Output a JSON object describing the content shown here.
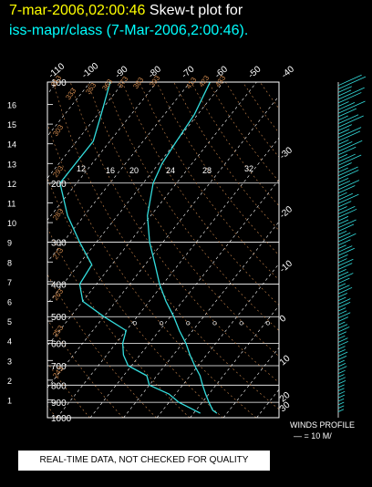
{
  "header": {
    "timestamp": "7-mar-2006,02:00:46",
    "title_text": "Skew-t plot for",
    "subtitle": "iss-mapr/class (7-Mar-2006,2:00:46)."
  },
  "wind_profile": {
    "label": "WINDS PROFILE",
    "legend": "— = 10 M/"
  },
  "notice": "REAL-TIME DATA, NOT CHECKED FOR QUALITY",
  "colors": {
    "trace": "#33dddd",
    "grid": "#ffffff",
    "dry_adiabat": "#c8844a",
    "accent_title": "#ffff00"
  },
  "chart_data": {
    "type": "line",
    "grid": true,
    "y_pressure_ticks": [
      "100",
      "200",
      "300",
      "400",
      "500",
      "600",
      "700",
      "800",
      "900",
      "1000"
    ],
    "y_height_km_ticks": [
      "16",
      "15",
      "14",
      "13",
      "12",
      "11",
      "10",
      "9",
      "8",
      "7",
      "6",
      "5",
      "4",
      "3",
      "2",
      "1"
    ],
    "top_temperature_ticks": [
      "-110",
      "-100",
      "-90",
      "-80",
      "-70",
      "-60",
      "-50",
      "-40"
    ],
    "right_temperature_ticks": [
      "-30",
      "-20",
      "-10",
      "0",
      "10",
      "20",
      "30"
    ],
    "dry_adiabat_labels": [
      "313",
      "333",
      "353",
      "363",
      "373",
      "383",
      "393",
      "413",
      "423",
      "433",
      "303",
      "293",
      "283",
      "273",
      "263",
      "253",
      "243"
    ],
    "mixing_ratio_labels": [
      "12",
      "16",
      "20",
      "24",
      "28",
      "32"
    ],
    "temperature_series": [
      {
        "p": 970,
        "t": 17
      },
      {
        "p": 950,
        "t": 15
      },
      {
        "p": 900,
        "t": 12
      },
      {
        "p": 850,
        "t": 9
      },
      {
        "p": 800,
        "t": 6
      },
      {
        "p": 750,
        "t": 3
      },
      {
        "p": 700,
        "t": -1
      },
      {
        "p": 650,
        "t": -5
      },
      {
        "p": 600,
        "t": -9
      },
      {
        "p": 550,
        "t": -14
      },
      {
        "p": 500,
        "t": -19
      },
      {
        "p": 450,
        "t": -25
      },
      {
        "p": 400,
        "t": -31
      },
      {
        "p": 350,
        "t": -37
      },
      {
        "p": 300,
        "t": -44
      },
      {
        "p": 250,
        "t": -51
      },
      {
        "p": 200,
        "t": -57
      },
      {
        "p": 175,
        "t": -59
      },
      {
        "p": 150,
        "t": -60
      },
      {
        "p": 125,
        "t": -61
      },
      {
        "p": 100,
        "t": -64
      }
    ],
    "dewpoint_series": [
      {
        "p": 970,
        "t": 12
      },
      {
        "p": 900,
        "t": 3
      },
      {
        "p": 850,
        "t": -2
      },
      {
        "p": 800,
        "t": -10
      },
      {
        "p": 750,
        "t": -13
      },
      {
        "p": 700,
        "t": -21
      },
      {
        "p": 650,
        "t": -25
      },
      {
        "p": 600,
        "t": -28
      },
      {
        "p": 550,
        "t": -30
      },
      {
        "p": 500,
        "t": -40
      },
      {
        "p": 450,
        "t": -50
      },
      {
        "p": 400,
        "t": -55
      },
      {
        "p": 350,
        "t": -56
      },
      {
        "p": 300,
        "t": -65
      },
      {
        "p": 250,
        "t": -75
      },
      {
        "p": 200,
        "t": -85
      },
      {
        "p": 175,
        "t": -85
      },
      {
        "p": 150,
        "t": -85
      },
      {
        "p": 125,
        "t": -89
      },
      {
        "p": 100,
        "t": -94
      }
    ]
  }
}
